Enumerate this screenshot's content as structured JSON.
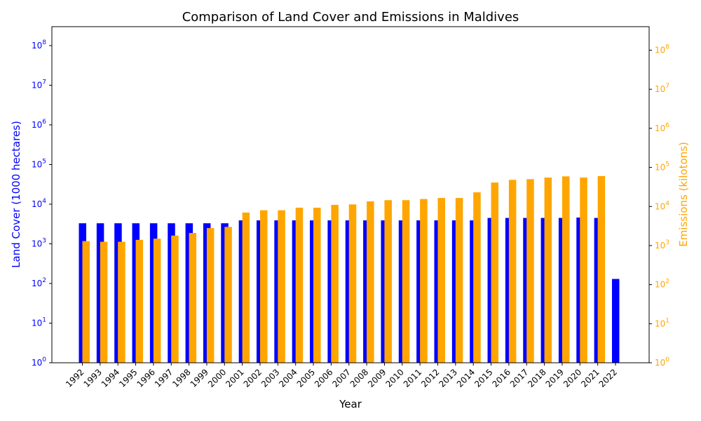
{
  "chart_data": {
    "type": "bar",
    "title": "Comparison of Land Cover and Emissions in Maldives",
    "xlabel": "Year",
    "categories": [
      "1992",
      "1993",
      "1994",
      "1995",
      "1996",
      "1997",
      "1998",
      "1999",
      "2000",
      "2001",
      "2002",
      "2003",
      "2004",
      "2005",
      "2006",
      "2007",
      "2008",
      "2009",
      "2010",
      "2011",
      "2012",
      "2013",
      "2014",
      "2015",
      "2016",
      "2017",
      "2018",
      "2019",
      "2020",
      "2021",
      "2022"
    ],
    "y_left": {
      "label": "Land Cover (1000 hectares)",
      "scale": "log",
      "ylim": [
        1,
        300000000
      ],
      "ticks": [
        1,
        10,
        100,
        1000,
        10000,
        100000,
        1000000,
        10000000,
        100000000
      ],
      "tick_labels": [
        "10^0",
        "10^1",
        "10^2",
        "10^3",
        "10^4",
        "10^5",
        "10^6",
        "10^7",
        "10^8"
      ],
      "color": "#0000ff"
    },
    "y_right": {
      "label": "Emissions (kilotons)",
      "scale": "log",
      "ylim": [
        1,
        400000000
      ],
      "ticks": [
        1,
        10,
        100,
        1000,
        10000,
        100000,
        1000000,
        10000000,
        100000000
      ],
      "tick_labels": [
        "10^0",
        "10^1",
        "10^2",
        "10^3",
        "10^4",
        "10^5",
        "10^6",
        "10^7",
        "10^8"
      ],
      "color": "#ffa500"
    },
    "series": [
      {
        "name": "Land Cover",
        "axis": "left",
        "color": "#0000ff",
        "values": [
          3300,
          3300,
          3300,
          3300,
          3300,
          3300,
          3300,
          3300,
          3300,
          3900,
          3900,
          3900,
          3900,
          3900,
          3900,
          3900,
          3900,
          3900,
          3900,
          3900,
          3900,
          3900,
          3900,
          4500,
          4500,
          4500,
          4500,
          4500,
          4600,
          4500,
          130
        ]
      },
      {
        "name": "Emissions",
        "axis": "right",
        "color": "#ffa500",
        "values": [
          1300,
          1250,
          1250,
          1400,
          1500,
          1800,
          2100,
          2800,
          3000,
          7000,
          8000,
          8000,
          9300,
          9300,
          11000,
          11300,
          13500,
          14500,
          14500,
          15500,
          16500,
          16500,
          23000,
          41000,
          48000,
          50000,
          55000,
          59000,
          55000,
          60000,
          null
        ]
      }
    ],
    "grid": false
  }
}
